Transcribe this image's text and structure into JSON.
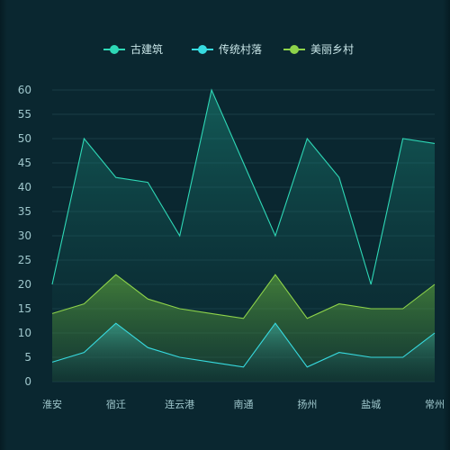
{
  "chart_data": {
    "type": "area",
    "categories": [
      "淮安",
      "",
      "宿迁",
      "",
      "连云港",
      "",
      "南通",
      "",
      "扬州",
      "",
      "盐城",
      "",
      "常州"
    ],
    "series": [
      {
        "name": "古建筑",
        "color": "#2ed8b6",
        "values": [
          20,
          50,
          42,
          41,
          30,
          60,
          45,
          30,
          50,
          42,
          20,
          50,
          49
        ]
      },
      {
        "name": "传统村落",
        "color": "#37dbe0",
        "values": [
          4,
          6,
          12,
          7,
          5,
          4,
          3,
          12,
          3,
          6,
          5,
          5,
          10
        ]
      },
      {
        "name": "美丽乡村",
        "color": "#8ed34a",
        "values": [
          14,
          16,
          22,
          17,
          15,
          14,
          13,
          22,
          13,
          16,
          15,
          15,
          20
        ]
      }
    ],
    "ylim": [
      0,
      60
    ],
    "yticks": [
      0,
      5,
      10,
      15,
      20,
      25,
      30,
      35,
      40,
      45,
      50,
      55,
      60
    ],
    "legend_position": "top-center",
    "grid": true
  }
}
